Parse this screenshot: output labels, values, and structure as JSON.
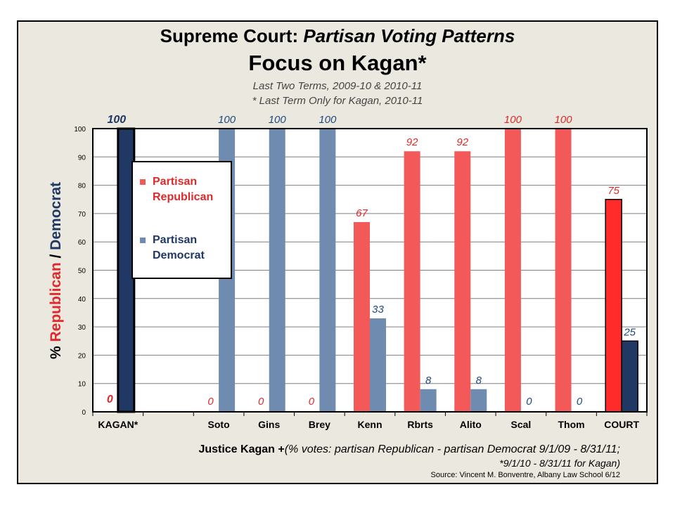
{
  "title_main": "Supreme Court: ",
  "title_italic": "Partisan Voting Patterns",
  "title_focus": "Focus on Kagan*",
  "subtitle1": "Last Two Terms, 2009-10 & 2010-11",
  "subtitle2": "* Last Term Only for Kagan, 2010-11",
  "ylabel_pct": "% ",
  "ylabel_rep": "Republican",
  "ylabel_sep": " / ",
  "ylabel_dem": "Democrat",
  "legend": {
    "rep_line1": "Partisan",
    "rep_line2": "Republican",
    "dem_line1": "Partisan",
    "dem_line2": "Democrat"
  },
  "footer": {
    "lead": "Justice Kagan +",
    "note": "(% votes: partisan Republican - partisan Democrat 9/1/09 - 8/31/11;",
    "note2": "*9/1/10 - 8/31/11 for Kagan)",
    "source": "Source: Vincent M. Bonventre,  Albany Law School  6/12"
  },
  "colors": {
    "rep": "#f4595a",
    "dem": "#6f8bb0",
    "kagan_dem": "#1f3864",
    "court_rep": "#ff2a2a",
    "court_dem": "#1f3864",
    "rep_label": "#e0292a",
    "dem_label": "#1f497d"
  },
  "chart_data": {
    "type": "bar",
    "categories": [
      "KAGAN*",
      "",
      "Soto",
      "Gins",
      "Brey",
      "Kenn",
      "Rbrts",
      "Alito",
      "Scal",
      "Thom",
      "COURT"
    ],
    "series": [
      {
        "name": "Partisan Republican",
        "values": [
          0,
          null,
          0,
          0,
          0,
          67,
          92,
          92,
          100,
          100,
          75
        ]
      },
      {
        "name": "Partisan Democrat",
        "values": [
          100,
          null,
          100,
          100,
          100,
          33,
          8,
          8,
          0,
          0,
          25
        ]
      }
    ],
    "ylim": [
      0,
      100
    ],
    "yticks": [
      0,
      10,
      20,
      30,
      40,
      50,
      60,
      70,
      80,
      90,
      100
    ],
    "grid": true,
    "legend_position": "top-left"
  }
}
